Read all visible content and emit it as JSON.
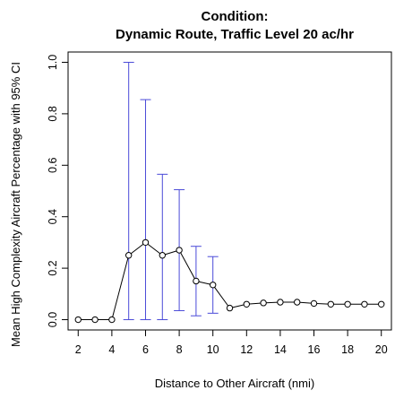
{
  "chart_data": {
    "type": "line",
    "title": "Condition:",
    "subtitle": "Dynamic Route, Traffic Level 20 ac/hr",
    "xlabel": "Distance to Other Aircraft (nmi)",
    "ylabel": "Mean High Complexity Aircraft Percentage with 95% CI",
    "xlim": [
      1.4,
      20.6
    ],
    "ylim": [
      -0.04,
      1.04
    ],
    "x_ticks": [
      2,
      4,
      6,
      8,
      10,
      12,
      14,
      16,
      18,
      20
    ],
    "x_tick_labels": [
      "2",
      "4",
      "6",
      "8",
      "10",
      "12",
      "14",
      "16",
      "18",
      "20"
    ],
    "y_ticks": [
      0.0,
      0.2,
      0.4,
      0.6,
      0.8,
      1.0
    ],
    "y_tick_labels": [
      "0.0",
      "0.2",
      "0.4",
      "0.6",
      "0.8",
      "1.0"
    ],
    "grid": false,
    "legend": "none",
    "series": [
      {
        "x": [
          2,
          3,
          4,
          5,
          6,
          7,
          8,
          9,
          10,
          11,
          12,
          13,
          14,
          15,
          16,
          17,
          18,
          19,
          20
        ],
        "values": [
          0.0,
          0.0,
          0.0,
          0.25,
          0.3,
          0.25,
          0.27,
          0.15,
          0.135,
          0.045,
          0.06,
          0.065,
          0.068,
          0.068,
          0.063,
          0.06,
          0.06,
          0.06,
          0.06
        ],
        "color": "#000000",
        "marker": "open-circle"
      }
    ],
    "error_bars": {
      "color": "#4a4ad8",
      "x": [
        5,
        6,
        7,
        8,
        9,
        10
      ],
      "lower": [
        0.0,
        0.0,
        0.0,
        0.035,
        0.015,
        0.025
      ],
      "upper": [
        1.0,
        0.855,
        0.565,
        0.505,
        0.285,
        0.245
      ]
    }
  }
}
